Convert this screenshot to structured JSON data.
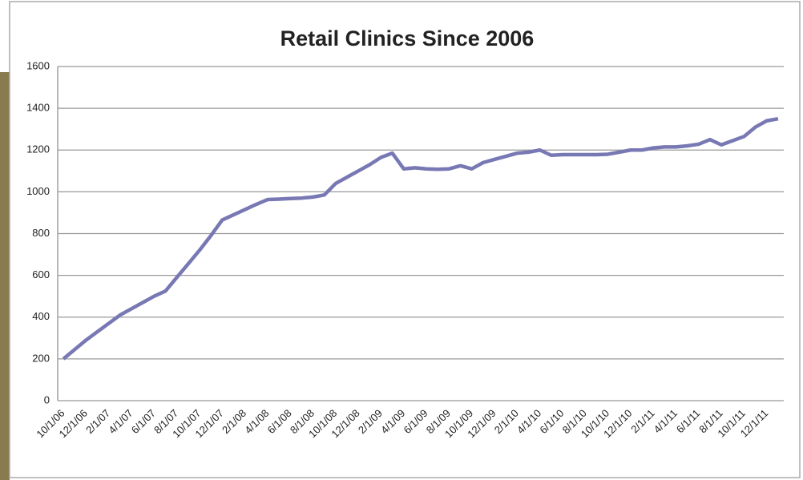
{
  "chart_data": {
    "type": "line",
    "title": "Retail Clinics Since 2006",
    "categories": [
      "10/1/06",
      null,
      "12/1/06",
      null,
      "2/1/07",
      null,
      "4/1/07",
      null,
      "6/1/07",
      null,
      "8/1/07",
      null,
      "10/1/07",
      null,
      "12/1/07",
      null,
      "2/1/08",
      null,
      "4/1/08",
      null,
      "6/1/08",
      null,
      "8/1/08",
      null,
      "10/1/08",
      null,
      "12/1/08",
      null,
      "2/1/09",
      null,
      "4/1/09",
      null,
      "6/1/09",
      null,
      "8/1/09",
      null,
      "10/1/09",
      null,
      "12/1/09",
      null,
      "2/1/10",
      null,
      "4/1/10",
      null,
      "6/1/10",
      null,
      "8/1/10",
      null,
      "10/1/10",
      null,
      "12/1/10",
      null,
      "2/1/11",
      null,
      "4/1/11",
      null,
      "6/1/11",
      null,
      "8/1/11",
      null,
      "10/1/11",
      null,
      "12/1/11",
      null
    ],
    "values": [
      200,
      245,
      290,
      330,
      370,
      410,
      440,
      470,
      500,
      525,
      590,
      655,
      720,
      790,
      865,
      890,
      915,
      940,
      963,
      965,
      968,
      970,
      975,
      985,
      1040,
      1070,
      1100,
      1130,
      1165,
      1185,
      1110,
      1115,
      1110,
      1108,
      1110,
      1125,
      1110,
      1140,
      1155,
      1170,
      1185,
      1190,
      1200,
      1175,
      1178,
      1178,
      1178,
      1178,
      1180,
      1190,
      1200,
      1200,
      1210,
      1215,
      1215,
      1220,
      1228,
      1250,
      1225,
      1245,
      1265,
      1310,
      1340,
      1350
    ],
    "color": "#7878b4",
    "ylim": [
      0,
      1600
    ],
    "yticks": [
      0,
      200,
      400,
      600,
      800,
      1000,
      1200,
      1400,
      1600
    ],
    "grid": true
  }
}
